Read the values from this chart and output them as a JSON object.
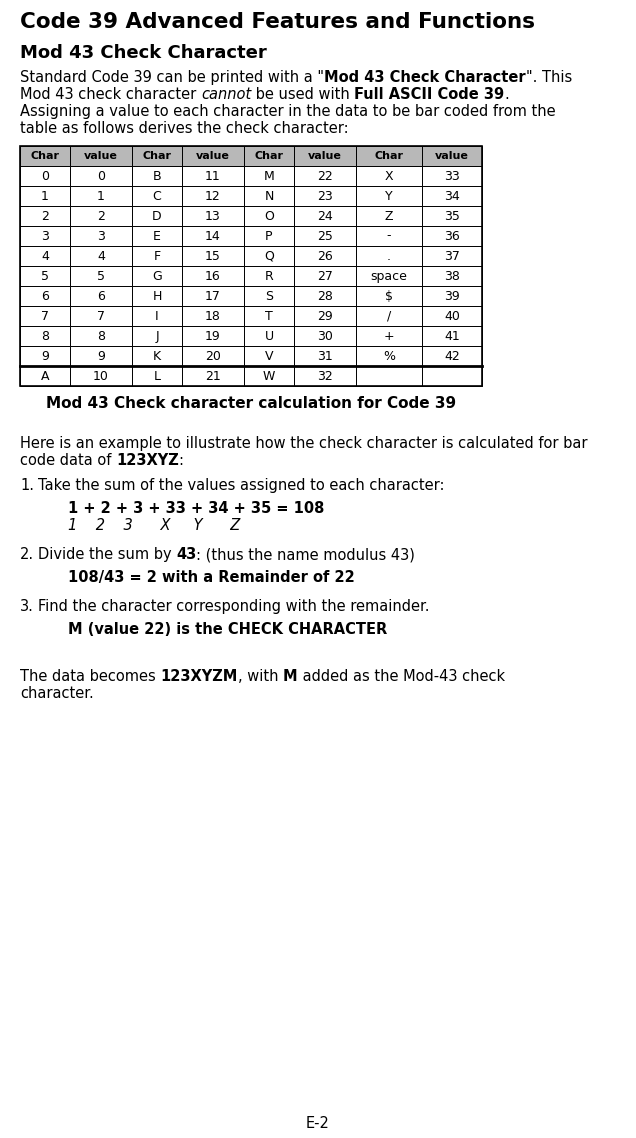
{
  "title": "Code 39 Advanced Features and Functions",
  "subtitle": "Mod 43 Check Character",
  "table_headers": [
    "Char",
    "value",
    "Char",
    "value",
    "Char",
    "value",
    "Char",
    "value"
  ],
  "table_data": [
    [
      "0",
      "0",
      "B",
      "11",
      "M",
      "22",
      "X",
      "33"
    ],
    [
      "1",
      "1",
      "C",
      "12",
      "N",
      "23",
      "Y",
      "34"
    ],
    [
      "2",
      "2",
      "D",
      "13",
      "O",
      "24",
      "Z",
      "35"
    ],
    [
      "3",
      "3",
      "E",
      "14",
      "P",
      "25",
      "-",
      "36"
    ],
    [
      "4",
      "4",
      "F",
      "15",
      "Q",
      "26",
      ".",
      "37"
    ],
    [
      "5",
      "5",
      "G",
      "16",
      "R",
      "27",
      "space",
      "38"
    ],
    [
      "6",
      "6",
      "H",
      "17",
      "S",
      "28",
      "$",
      "39"
    ],
    [
      "7",
      "7",
      "I",
      "18",
      "T",
      "29",
      "/",
      "40"
    ],
    [
      "8",
      "8",
      "J",
      "19",
      "U",
      "30",
      "+",
      "41"
    ],
    [
      "9",
      "9",
      "K",
      "20",
      "V",
      "31",
      "%",
      "42"
    ],
    [
      "A",
      "10",
      "L",
      "21",
      "W",
      "32",
      "",
      ""
    ]
  ],
  "table_caption": "Mod 43 Check character calculation for Code 39",
  "step1_formula_bold": "1 + 2 + 3 + 33 + 34 + 35 = 108",
  "step1_formula_italic": "1    2    3      X     Y      Z",
  "step2_formula": "108/43 = 2 with a Remainder of 22",
  "step3_formula": "M (value 22) is the CHECK CHARACTER",
  "page_number": "E-2",
  "bg_color": "#ffffff",
  "text_color": "#000000",
  "table_header_bg": "#b8b8b8",
  "table_border_color": "#000000",
  "fig_width": 6.36,
  "fig_height": 11.38,
  "dpi": 100
}
